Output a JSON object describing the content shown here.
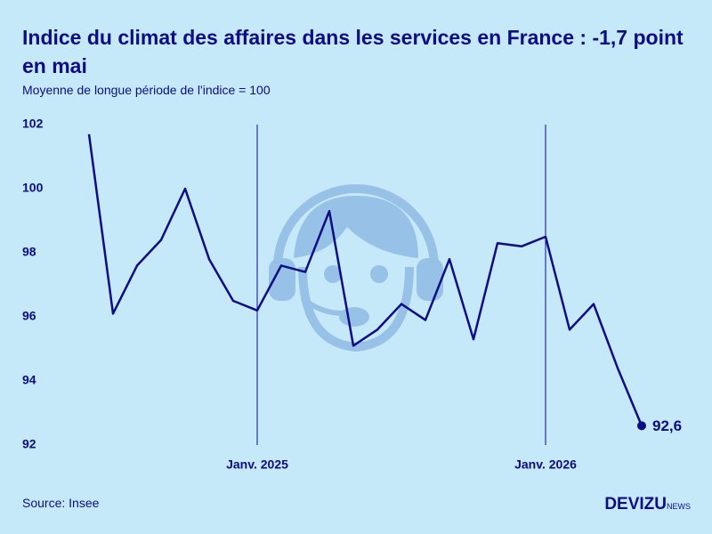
{
  "chart_data": {
    "type": "line",
    "title": "Indice du climat des affaires dans les services en France : -1,7 point en mai",
    "subtitle": "Moyenne de longue période de l'indice = 100",
    "source": "Source: Insee",
    "brand": "DEVIZU",
    "brand_suffix": "NEWS",
    "categories": [
      null,
      null,
      null,
      null,
      null,
      null,
      null,
      "Janv. 2025",
      null,
      null,
      null,
      null,
      null,
      null,
      null,
      null,
      null,
      null,
      null,
      "Janv. 2026",
      null,
      null,
      null,
      null
    ],
    "values": [
      101.7,
      96.1,
      97.6,
      98.4,
      100.0,
      97.8,
      96.5,
      96.2,
      97.6,
      97.4,
      99.3,
      95.1,
      95.6,
      96.4,
      95.9,
      97.8,
      95.3,
      98.3,
      98.2,
      98.5,
      95.6,
      96.4,
      94.4,
      92.6
    ],
    "value_labels": [
      null,
      null,
      null,
      null,
      null,
      null,
      null,
      null,
      null,
      null,
      null,
      null,
      null,
      null,
      null,
      null,
      null,
      null,
      null,
      null,
      null,
      null,
      null,
      "92,6"
    ],
    "color": "#0c0c84",
    "ylim": [
      92,
      102
    ],
    "yticks": [
      92,
      94,
      96,
      98,
      100,
      102
    ]
  }
}
